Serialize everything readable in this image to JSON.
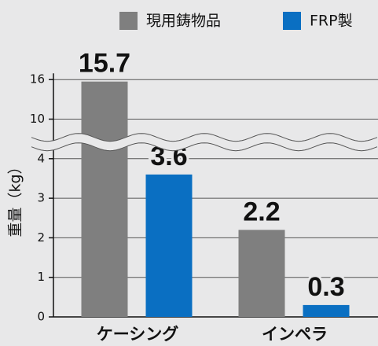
{
  "chart_data": {
    "type": "bar",
    "categories": [
      "ケーシング",
      "インペラ"
    ],
    "series": [
      {
        "name": "現用鋳物品",
        "color": "#7f7f7f",
        "values": [
          15.7,
          2.2
        ]
      },
      {
        "name": "FRP製",
        "color": "#0a6fc2",
        "values": [
          3.6,
          0.3
        ]
      }
    ],
    "y_label": "重量（kg）",
    "ylim": [
      0,
      16
    ],
    "yticks": [
      0,
      1,
      2,
      3,
      4,
      10,
      16
    ],
    "grid": true,
    "axis_break": true
  }
}
